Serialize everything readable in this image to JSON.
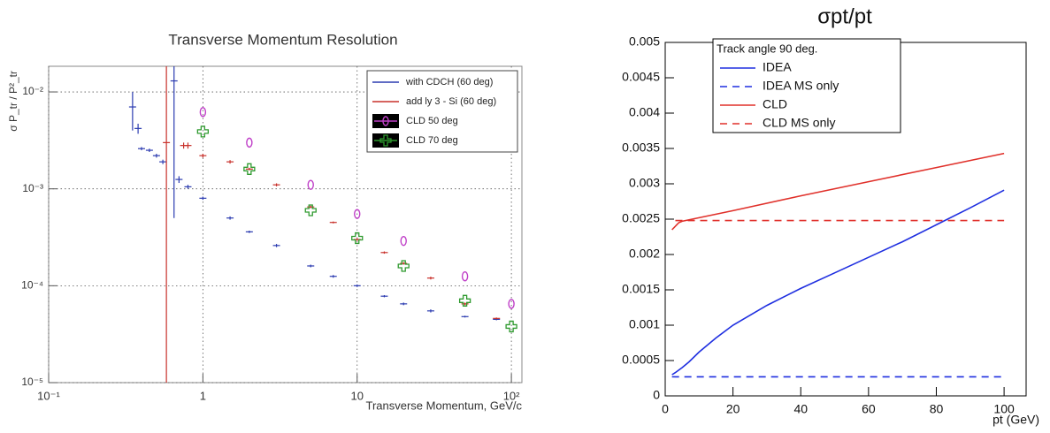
{
  "chart_data": [
    {
      "type": "scatter",
      "title": "Transverse Momentum Resolution",
      "x_label": "Transverse Momentum, GeV/c",
      "y_label": "σ P_tr / P²_tr",
      "xlog": true,
      "ylog": true,
      "grid": true,
      "xlim": [
        0.1,
        117
      ],
      "ylim": [
        1e-05,
        0.0184
      ],
      "xticks": [
        {
          "value": 0.1,
          "label": "10⁻¹"
        },
        1,
        10,
        {
          "value": 100,
          "label": "10²"
        }
      ],
      "yticks": [
        {
          "value": 1e-05,
          "label": "10⁻⁵"
        },
        {
          "value": 0.0001,
          "label": "10⁻⁴"
        },
        {
          "value": 0.001,
          "label": "10⁻³"
        },
        {
          "value": 0.01,
          "label": "10⁻²"
        }
      ],
      "legend": "top-right",
      "series": [
        {
          "name": "with CDCH (60 deg)",
          "color": "#2b3bb0",
          "marker": "bar",
          "x": [
            0.35,
            0.38,
            0.4,
            0.45,
            0.5,
            0.55,
            0.65,
            0.7,
            0.8,
            1,
            1.5,
            2,
            3,
            5,
            7,
            10,
            15,
            20,
            30,
            50,
            80
          ],
          "values": [
            0.007,
            0.0042,
            0.0026,
            0.0025,
            0.0022,
            0.0019,
            0.013,
            0.00125,
            0.00105,
            0.0008,
            0.0005,
            0.00036,
            0.00026,
            0.00016,
            0.000125,
            0.0001,
            7.8e-05,
            6.5e-05,
            5.5e-05,
            4.8e-05,
            4.5e-05
          ],
          "errors": [
            0.003,
            0.0005,
            0.0001,
            0.0001,
            0.0001,
            0.0001,
            0.0125,
            0.0001,
            5e-05,
            3e-05,
            2e-05,
            1e-05,
            1e-05,
            5e-06,
            4e-06,
            3e-06,
            2e-06,
            2e-06,
            2e-06,
            1e-06,
            1e-06
          ]
        },
        {
          "name": "add ly 3 - Si (60 deg)",
          "color": "#c8302a",
          "marker": "bar",
          "x": [
            0.58,
            0.75,
            0.8,
            1,
            1.5,
            2,
            3,
            5,
            7,
            10,
            15,
            20,
            30,
            50,
            80
          ],
          "values": [
            0.003,
            0.0028,
            0.0028,
            0.0022,
            0.0019,
            0.0016,
            0.0011,
            0.00065,
            0.00045,
            0.0003,
            0.00022,
            0.00017,
            0.00012,
            6.5e-05,
            4.6e-05
          ],
          "errors": [
            0.02,
            0.0002,
            0.0002,
            0.0001,
            8e-05,
            5e-05,
            4e-05,
            2e-05,
            1e-05,
            1e-05,
            6e-06,
            5e-06,
            4e-06,
            2e-06,
            1e-06
          ]
        },
        {
          "name": "CLD 50 deg",
          "color": "#c040c8",
          "marker": "diamond",
          "x": [
            1,
            2,
            5,
            10,
            20,
            50,
            100
          ],
          "values": [
            0.0062,
            0.003,
            0.0011,
            0.00055,
            0.00029,
            0.000125,
            6.5e-05
          ]
        },
        {
          "name": "CLD 70 deg",
          "color": "#2f9a2f",
          "marker": "plus",
          "x": [
            1,
            2,
            5,
            10,
            20,
            50,
            100
          ],
          "values": [
            0.0039,
            0.0016,
            0.0006,
            0.00031,
            0.00016,
            7e-05,
            3.8e-05
          ]
        }
      ]
    },
    {
      "type": "line",
      "title": "σpt/pt",
      "x_label": "pt (GeV)",
      "xlog": false,
      "ylog": false,
      "grid": false,
      "xlim": [
        0,
        106.5
      ],
      "ylim": [
        0,
        0.005
      ],
      "xticks": [
        0,
        20,
        40,
        60,
        80,
        100
      ],
      "yticks": [
        0,
        0.0005,
        0.001,
        0.0015,
        0.002,
        0.0025,
        0.003,
        0.0035,
        0.004,
        0.0045,
        0.005
      ],
      "legend_title": "Track angle 90 deg.",
      "legend": "top-left",
      "series": [
        {
          "name": "IDEA",
          "color": "#1f2fe0",
          "dash": false,
          "x": [
            2,
            3,
            5,
            7,
            10,
            15,
            20,
            30,
            40,
            50,
            60,
            70,
            80,
            90,
            100
          ],
          "values": [
            0.0003,
            0.00033,
            0.0004,
            0.00048,
            0.00062,
            0.00082,
            0.001,
            0.00128,
            0.00152,
            0.00174,
            0.00196,
            0.00218,
            0.00242,
            0.00266,
            0.00291
          ]
        },
        {
          "name": "IDEA MS only",
          "color": "#1f2fe0",
          "dash": true,
          "x": [
            2,
            100
          ],
          "values": [
            0.00027,
            0.00027
          ]
        },
        {
          "name": "CLD",
          "color": "#e0302a",
          "dash": false,
          "x": [
            2,
            3,
            4,
            5,
            10,
            20,
            40,
            60,
            80,
            100
          ],
          "values": [
            0.00235,
            0.0024,
            0.00245,
            0.00247,
            0.00252,
            0.00262,
            0.00283,
            0.00303,
            0.00323,
            0.00343
          ]
        },
        {
          "name": "CLD MS only",
          "color": "#e0302a",
          "dash": true,
          "x": [
            3,
            100
          ],
          "values": [
            0.00248,
            0.00248
          ]
        }
      ]
    }
  ]
}
